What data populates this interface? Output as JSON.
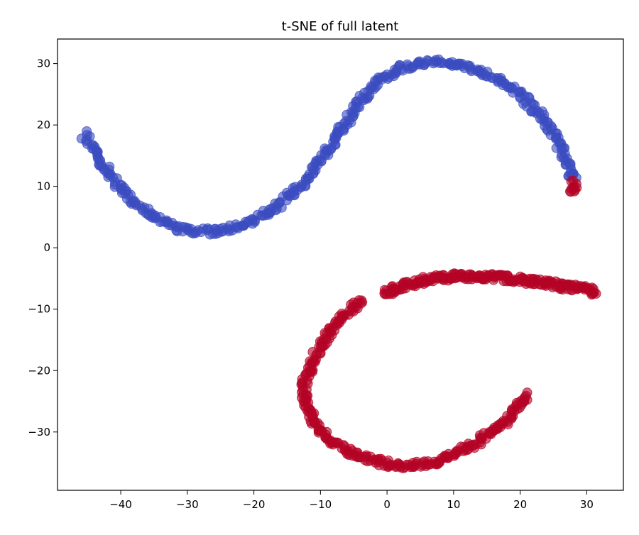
{
  "chart_data": {
    "type": "scatter",
    "title": "t-SNE of full latent",
    "xlabel": "",
    "ylabel": "",
    "xlim": [
      -49.5,
      35.5
    ],
    "ylim": [
      -39.5,
      34
    ],
    "xticks": [
      -40,
      -30,
      -20,
      -10,
      0,
      10,
      20,
      30
    ],
    "xtick_labels": [
      "−40",
      "−30",
      "−20",
      "−10",
      "0",
      "10",
      "20",
      "30"
    ],
    "yticks": [
      -30,
      -20,
      -10,
      0,
      10,
      20,
      30
    ],
    "ytick_labels": [
      "−30",
      "−20",
      "−10",
      "0",
      "10",
      "20",
      "30"
    ],
    "grid": false,
    "legend": "none",
    "colors": {
      "cluster_a": "#3b4cc0",
      "cluster_b": "#b40426"
    },
    "series": [
      {
        "color": "#3b4cc0",
        "path": [
          [
            -45.5,
            18.5
          ],
          [
            -44,
            16
          ],
          [
            -42,
            12.5
          ],
          [
            -39.5,
            9
          ],
          [
            -37,
            6.5
          ],
          [
            -34,
            4.5
          ],
          [
            -31,
            3.2
          ],
          [
            -28,
            2.6
          ],
          [
            -25,
            2.8
          ],
          [
            -22,
            3.6
          ],
          [
            -19,
            5
          ],
          [
            -16,
            7.2
          ],
          [
            -13,
            10
          ],
          [
            -10,
            14
          ],
          [
            -7,
            19
          ],
          [
            -4,
            24
          ],
          [
            -1,
            27.5
          ],
          [
            2,
            29.2
          ],
          [
            5,
            30
          ],
          [
            8,
            30.3
          ],
          [
            11,
            29.8
          ],
          [
            14,
            28.8
          ],
          [
            17,
            27
          ],
          [
            20,
            25
          ],
          [
            23,
            21.5
          ],
          [
            25,
            18.5
          ],
          [
            26.5,
            15
          ],
          [
            27.5,
            12.5
          ],
          [
            28,
            11
          ]
        ],
        "n_points": 420
      },
      {
        "color": "#b40426",
        "path": [
          [
            28,
            10.8
          ],
          [
            28,
            9.5
          ],
          [
            28,
            8.8
          ]
        ],
        "n_points": 12
      },
      {
        "color": "#b40426",
        "path": [
          [
            -3.5,
            -8.5
          ],
          [
            -6,
            -10.5
          ],
          [
            -8.5,
            -13.5
          ],
          [
            -10.5,
            -17
          ],
          [
            -12,
            -20.5
          ],
          [
            -12.5,
            -23
          ],
          [
            -12,
            -26
          ],
          [
            -10.5,
            -29
          ],
          [
            -8.5,
            -31.5
          ],
          [
            -5.5,
            -33.5
          ],
          [
            -2,
            -34.8
          ],
          [
            1,
            -35.3
          ],
          [
            4,
            -35.5
          ],
          [
            7,
            -35
          ],
          [
            10,
            -33.8
          ],
          [
            13,
            -32
          ],
          [
            16,
            -30
          ],
          [
            18.5,
            -27.5
          ],
          [
            20,
            -25.5
          ],
          [
            21.2,
            -24
          ]
        ],
        "n_points": 300
      },
      {
        "color": "#b40426",
        "path": [
          [
            -0.5,
            -7.5
          ],
          [
            3,
            -6
          ],
          [
            7,
            -5
          ],
          [
            11,
            -4.6
          ],
          [
            15,
            -4.7
          ],
          [
            18,
            -5
          ],
          [
            21,
            -5.3
          ],
          [
            24,
            -5.8
          ],
          [
            27,
            -6.4
          ],
          [
            29.5,
            -6.8
          ],
          [
            31.5,
            -7.2
          ]
        ],
        "n_points": 230
      }
    ]
  }
}
